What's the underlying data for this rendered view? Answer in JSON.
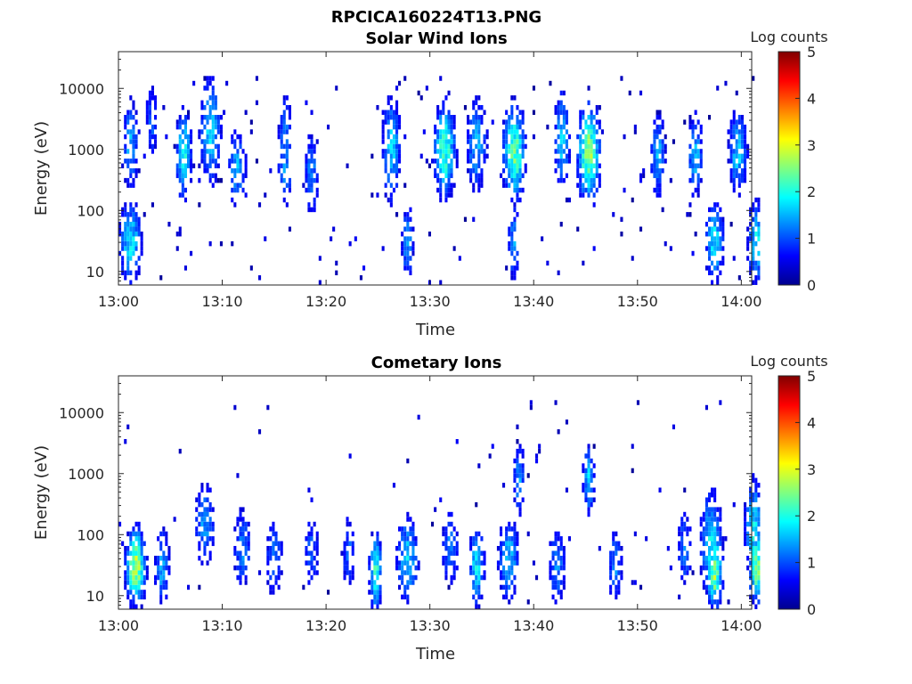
{
  "figure": {
    "title_line1": "RPCICA160224T13.PNG"
  },
  "chart_data": [
    {
      "type": "heatmap",
      "title": "Solar Wind Ions",
      "xlabel": "Time",
      "ylabel": "Energy (eV)",
      "yscale": "log",
      "ylim": [
        6,
        40000
      ],
      "xlim_min": [
        0,
        61
      ],
      "xticks": [
        "13:00",
        "13:10",
        "13:20",
        "13:30",
        "13:40",
        "13:50",
        "14:00"
      ],
      "yticks": [
        "10",
        "100",
        "1000",
        "10000"
      ],
      "colorbar": {
        "label": "Log counts",
        "range": [
          0,
          5
        ],
        "ticks": [
          "0",
          "1",
          "2",
          "3",
          "4",
          "5"
        ]
      },
      "features": [
        {
          "t": 1,
          "e": 30,
          "v": 2.0,
          "dt": 0.7,
          "de": 1.8
        },
        {
          "t": 1,
          "e": 1200,
          "v": 1.6,
          "dt": 0.5,
          "de": 2.5
        },
        {
          "t": 3,
          "e": 3000,
          "v": 1.2,
          "dt": 0.4,
          "de": 2.0
        },
        {
          "t": 6,
          "e": 800,
          "v": 2.2,
          "dt": 0.5,
          "de": 2.0
        },
        {
          "t": 8.5,
          "e": 2000,
          "v": 1.8,
          "dt": 0.7,
          "de": 3.0
        },
        {
          "t": 11,
          "e": 500,
          "v": 1.6,
          "dt": 0.6,
          "de": 1.7
        },
        {
          "t": 15.5,
          "e": 1500,
          "v": 1.3,
          "dt": 0.5,
          "de": 2.5
        },
        {
          "t": 15.5,
          "e": 500,
          "v": 1.4,
          "dt": 0.5,
          "de": 2.0
        },
        {
          "t": 18,
          "e": 400,
          "v": 1.4,
          "dt": 0.5,
          "de": 2.0
        },
        {
          "t": 25.5,
          "e": 1000,
          "v": 1.8,
          "dt": 0.6,
          "de": 3.0
        },
        {
          "t": 27,
          "e": 30,
          "v": 1.5,
          "dt": 0.4,
          "de": 1.8
        },
        {
          "t": 30.5,
          "e": 1000,
          "v": 2.4,
          "dt": 0.7,
          "de": 2.3
        },
        {
          "t": 33.5,
          "e": 1200,
          "v": 1.6,
          "dt": 0.7,
          "de": 2.5
        },
        {
          "t": 37,
          "e": 900,
          "v": 2.6,
          "dt": 0.7,
          "de": 2.3
        },
        {
          "t": 37,
          "e": 30,
          "v": 1.5,
          "dt": 0.4,
          "de": 1.8
        },
        {
          "t": 41.5,
          "e": 1500,
          "v": 1.8,
          "dt": 0.5,
          "de": 2.5
        },
        {
          "t": 44,
          "e": 900,
          "v": 2.9,
          "dt": 0.7,
          "de": 2.3
        },
        {
          "t": 50.5,
          "e": 800,
          "v": 1.6,
          "dt": 0.5,
          "de": 2.0
        },
        {
          "t": 54,
          "e": 800,
          "v": 1.7,
          "dt": 0.5,
          "de": 2.0
        },
        {
          "t": 55.8,
          "e": 30,
          "v": 2.0,
          "dt": 0.6,
          "de": 1.8
        },
        {
          "t": 58,
          "e": 900,
          "v": 1.8,
          "dt": 0.6,
          "de": 2.0
        },
        {
          "t": 59.8,
          "e": 30,
          "v": 2.0,
          "dt": 0.6,
          "de": 1.8
        }
      ]
    },
    {
      "type": "heatmap",
      "title": "Cometary Ions",
      "xlabel": "Time",
      "ylabel": "Energy (eV)",
      "yscale": "log",
      "ylim": [
        6,
        40000
      ],
      "xlim_min": [
        0,
        61
      ],
      "xticks": [
        "13:00",
        "13:10",
        "13:20",
        "13:30",
        "13:40",
        "13:50",
        "14:00"
      ],
      "yticks": [
        "10",
        "100",
        "1000",
        "10000"
      ],
      "colorbar": {
        "label": "Log counts",
        "range": [
          0,
          5
        ],
        "ticks": [
          "0",
          "1",
          "2",
          "3",
          "4",
          "5"
        ]
      },
      "features": [
        {
          "t": 1.5,
          "e": 30,
          "v": 3.0,
          "dt": 0.6,
          "de": 1.6
        },
        {
          "t": 4,
          "e": 30,
          "v": 1.6,
          "dt": 0.5,
          "de": 1.8
        },
        {
          "t": 8,
          "e": 150,
          "v": 1.5,
          "dt": 0.7,
          "de": 2.0
        },
        {
          "t": 11.5,
          "e": 60,
          "v": 1.4,
          "dt": 0.6,
          "de": 2.0
        },
        {
          "t": 14.5,
          "e": 40,
          "v": 1.3,
          "dt": 0.6,
          "de": 2.0
        },
        {
          "t": 18,
          "e": 50,
          "v": 1.2,
          "dt": 0.5,
          "de": 2.0
        },
        {
          "t": 21.5,
          "e": 50,
          "v": 1.2,
          "dt": 0.5,
          "de": 2.0
        },
        {
          "t": 24,
          "e": 25,
          "v": 2.4,
          "dt": 0.4,
          "de": 1.6
        },
        {
          "t": 27,
          "e": 40,
          "v": 1.8,
          "dt": 0.7,
          "de": 2.0
        },
        {
          "t": 31,
          "e": 60,
          "v": 1.3,
          "dt": 0.6,
          "de": 2.0
        },
        {
          "t": 33.5,
          "e": 30,
          "v": 2.0,
          "dt": 0.5,
          "de": 1.8
        },
        {
          "t": 36.5,
          "e": 40,
          "v": 1.7,
          "dt": 0.7,
          "de": 2.0
        },
        {
          "t": 37.5,
          "e": 800,
          "v": 1.5,
          "dt": 0.4,
          "de": 1.6
        },
        {
          "t": 41,
          "e": 30,
          "v": 1.4,
          "dt": 0.6,
          "de": 1.8
        },
        {
          "t": 44,
          "e": 800,
          "v": 1.8,
          "dt": 0.4,
          "de": 1.5
        },
        {
          "t": 46.5,
          "e": 30,
          "v": 1.4,
          "dt": 0.5,
          "de": 1.8
        },
        {
          "t": 53,
          "e": 60,
          "v": 1.3,
          "dt": 0.5,
          "de": 2.0
        },
        {
          "t": 55.5,
          "e": 70,
          "v": 2.0,
          "dt": 0.7,
          "de": 2.8
        },
        {
          "t": 55.8,
          "e": 25,
          "v": 2.9,
          "dt": 0.5,
          "de": 1.5
        },
        {
          "t": 59.5,
          "e": 120,
          "v": 2.0,
          "dt": 0.6,
          "de": 2.6
        },
        {
          "t": 59.8,
          "e": 30,
          "v": 2.8,
          "dt": 0.5,
          "de": 1.5
        }
      ]
    }
  ]
}
